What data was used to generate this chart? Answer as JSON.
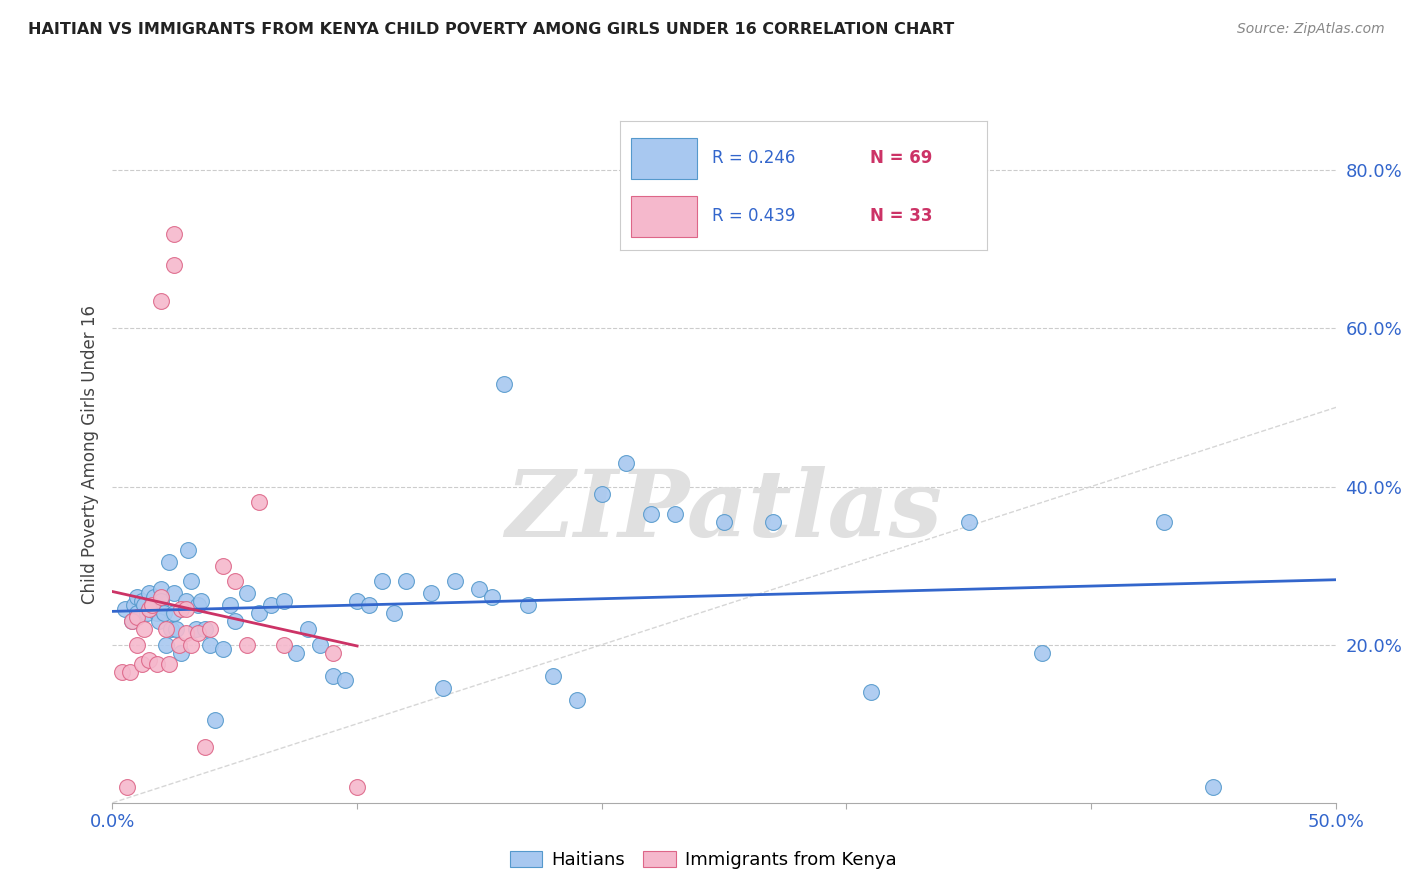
{
  "title": "HAITIAN VS IMMIGRANTS FROM KENYA CHILD POVERTY AMONG GIRLS UNDER 16 CORRELATION CHART",
  "source": "Source: ZipAtlas.com",
  "ylabel": "Child Poverty Among Girls Under 16",
  "background_color": "#ffffff",
  "watermark": "ZIPatlas",
  "ytick_vals": [
    0.2,
    0.4,
    0.6,
    0.8
  ],
  "ytick_labels": [
    "20.0%",
    "40.0%",
    "60.0%",
    "80.0%"
  ],
  "xlim": [
    0.0,
    0.5
  ],
  "ylim": [
    0.0,
    0.88
  ],
  "blue_scatter_x": [
    0.005,
    0.008,
    0.009,
    0.01,
    0.01,
    0.012,
    0.013,
    0.014,
    0.015,
    0.016,
    0.017,
    0.018,
    0.019,
    0.02,
    0.02,
    0.021,
    0.022,
    0.023,
    0.024,
    0.025,
    0.025,
    0.026,
    0.028,
    0.03,
    0.031,
    0.032,
    0.034,
    0.035,
    0.036,
    0.038,
    0.04,
    0.042,
    0.045,
    0.048,
    0.05,
    0.055,
    0.06,
    0.065,
    0.07,
    0.075,
    0.08,
    0.085,
    0.09,
    0.095,
    0.1,
    0.105,
    0.11,
    0.115,
    0.12,
    0.13,
    0.135,
    0.14,
    0.15,
    0.155,
    0.16,
    0.17,
    0.18,
    0.19,
    0.2,
    0.21,
    0.22,
    0.23,
    0.25,
    0.27,
    0.31,
    0.35,
    0.38,
    0.43,
    0.45
  ],
  "blue_scatter_y": [
    0.245,
    0.23,
    0.25,
    0.26,
    0.24,
    0.255,
    0.25,
    0.24,
    0.265,
    0.25,
    0.26,
    0.24,
    0.23,
    0.27,
    0.255,
    0.24,
    0.2,
    0.305,
    0.22,
    0.265,
    0.24,
    0.22,
    0.19,
    0.255,
    0.32,
    0.28,
    0.22,
    0.25,
    0.255,
    0.22,
    0.2,
    0.105,
    0.195,
    0.25,
    0.23,
    0.265,
    0.24,
    0.25,
    0.255,
    0.19,
    0.22,
    0.2,
    0.16,
    0.155,
    0.255,
    0.25,
    0.28,
    0.24,
    0.28,
    0.265,
    0.145,
    0.28,
    0.27,
    0.26,
    0.53,
    0.25,
    0.16,
    0.13,
    0.39,
    0.43,
    0.365,
    0.365,
    0.355,
    0.355,
    0.14,
    0.355,
    0.19,
    0.355,
    0.02
  ],
  "pink_scatter_x": [
    0.004,
    0.006,
    0.007,
    0.008,
    0.01,
    0.01,
    0.012,
    0.013,
    0.015,
    0.015,
    0.016,
    0.018,
    0.02,
    0.02,
    0.022,
    0.023,
    0.025,
    0.025,
    0.027,
    0.028,
    0.03,
    0.03,
    0.032,
    0.035,
    0.038,
    0.04,
    0.045,
    0.05,
    0.055,
    0.06,
    0.07,
    0.09,
    0.1
  ],
  "pink_scatter_y": [
    0.165,
    0.02,
    0.165,
    0.23,
    0.235,
    0.2,
    0.175,
    0.22,
    0.245,
    0.18,
    0.25,
    0.175,
    0.635,
    0.26,
    0.22,
    0.175,
    0.72,
    0.68,
    0.2,
    0.245,
    0.245,
    0.215,
    0.2,
    0.215,
    0.07,
    0.22,
    0.3,
    0.28,
    0.2,
    0.38,
    0.2,
    0.19,
    0.02
  ],
  "blue_line_color": "#3366cc",
  "pink_line_color": "#cc3366",
  "diag_line_color": "#cccccc",
  "scatter_blue_face": "#a8c8f0",
  "scatter_blue_edge": "#5599cc",
  "scatter_pink_face": "#f5b8cc",
  "scatter_pink_edge": "#dd6688",
  "grid_color": "#cccccc",
  "title_color": "#222222",
  "source_color": "#888888",
  "watermark_color": "#e0e0e0",
  "tick_color": "#3366cc",
  "legend_r1_color": "#3366cc",
  "legend_n1_color": "#cc3366",
  "legend_r2_color": "#3366cc",
  "legend_n2_color": "#cc3366"
}
